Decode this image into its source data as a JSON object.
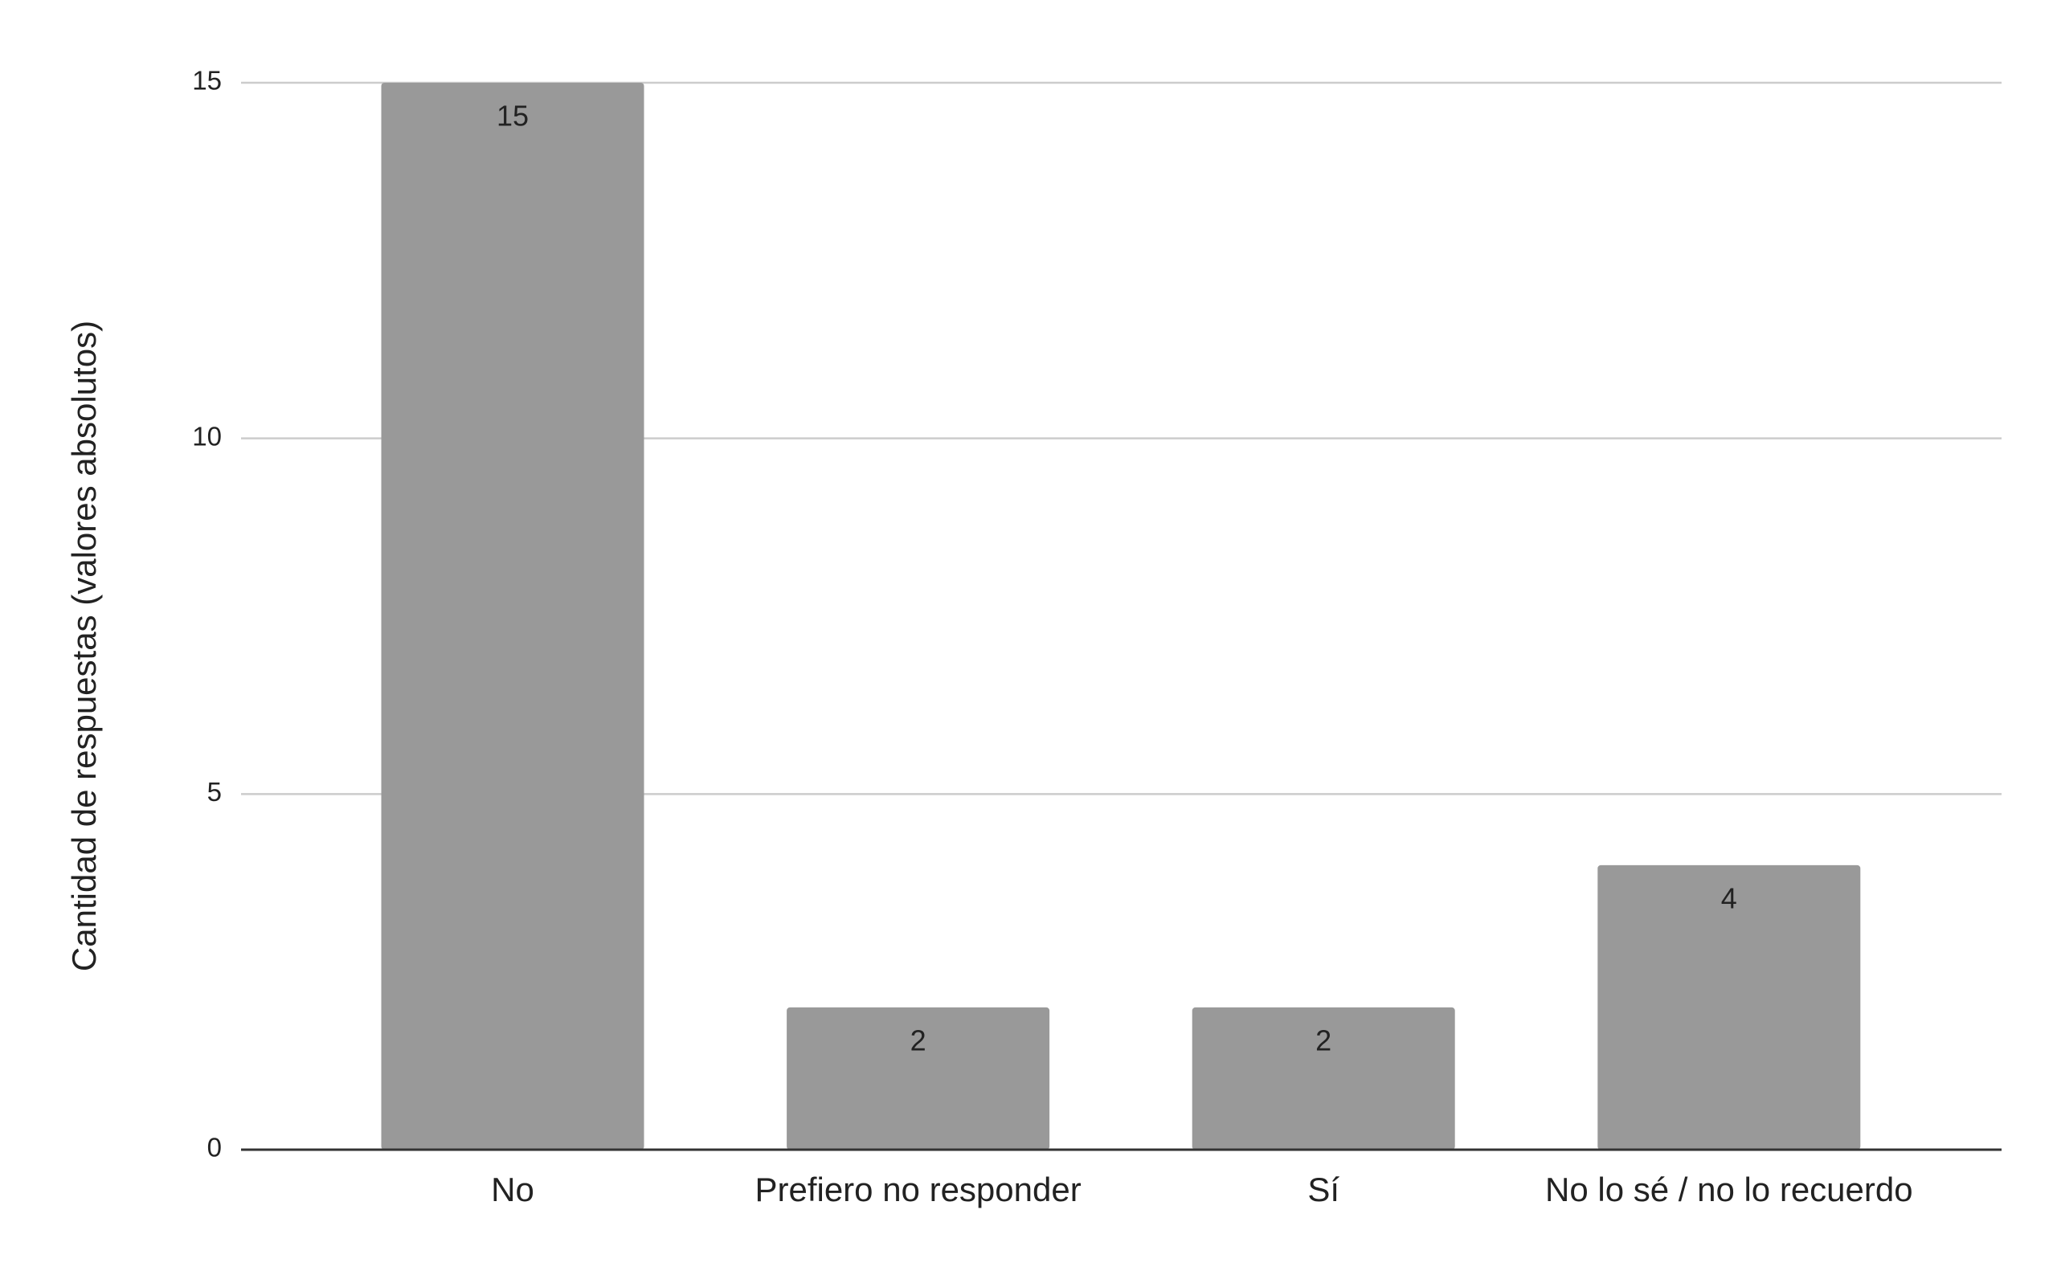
{
  "chart_data": {
    "type": "bar",
    "y_axis_label": "Cantidad de respuestas (valores absolutos)",
    "categories": [
      "No",
      "Prefiero no responder",
      "Sí",
      "No lo sé / no lo recuerdo"
    ],
    "values": [
      15,
      2,
      2,
      4
    ],
    "color": "#999999",
    "ylim": [
      0,
      15
    ],
    "yticks": [
      0,
      5,
      10,
      15
    ],
    "grid": true
  }
}
